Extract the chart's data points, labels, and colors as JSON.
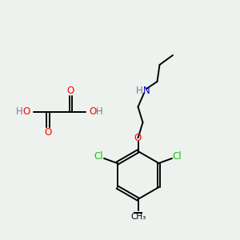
{
  "background_color": "#eef2ee",
  "colors": {
    "O": "#ff0000",
    "N": "#0000cc",
    "Cl": "#00cc00",
    "H": "#708090",
    "C": "#000000"
  },
  "figsize": [
    3.0,
    3.0
  ],
  "dpi": 100
}
